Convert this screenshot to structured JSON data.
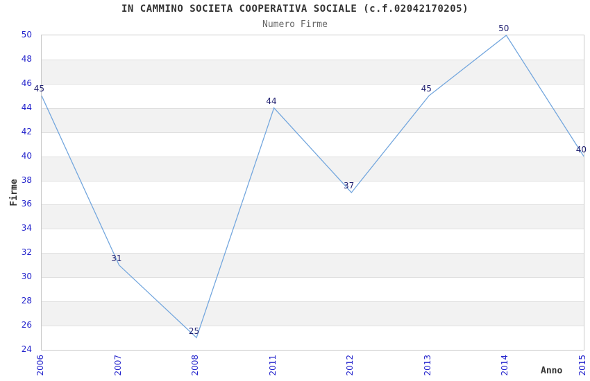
{
  "title": "IN CAMMINO SOCIETA COOPERATIVA SOCIALE (c.f.02042170205)",
  "subtitle": "Numero Firme",
  "chart_data": {
    "type": "line",
    "categories": [
      "2006",
      "2007",
      "2008",
      "2011",
      "2012",
      "2013",
      "2014",
      "2015"
    ],
    "values": [
      45,
      31,
      25,
      44,
      37,
      45,
      50,
      40
    ],
    "data_labels": [
      "45",
      "31",
      "25",
      "44",
      "37",
      "45",
      "50",
      "40"
    ],
    "title": "IN CAMMINO SOCIETA COOPERATIVA SOCIALE (c.f.02042170205)",
    "subtitle": "Numero Firme",
    "xlabel": "Anno",
    "ylabel": "Firme",
    "ylim": [
      24,
      50
    ],
    "ytick_step": 2,
    "yticks": [
      24,
      26,
      28,
      30,
      32,
      34,
      36,
      38,
      40,
      42,
      44,
      46,
      48,
      50
    ],
    "legend": "none",
    "grid": "horizontal-bands-alternating",
    "colors": {
      "line": "#74a7de",
      "tick_label": "#2323cc",
      "data_label": "#1f1f70",
      "band_alt": "#f2f2f2",
      "band_base": "#ffffff",
      "grid_line": "#dfdfdf",
      "plot_border": "#c9c9c9",
      "title": "#333333",
      "subtitle": "#666666",
      "axis_title": "#333333",
      "background": "#ffffff"
    }
  }
}
